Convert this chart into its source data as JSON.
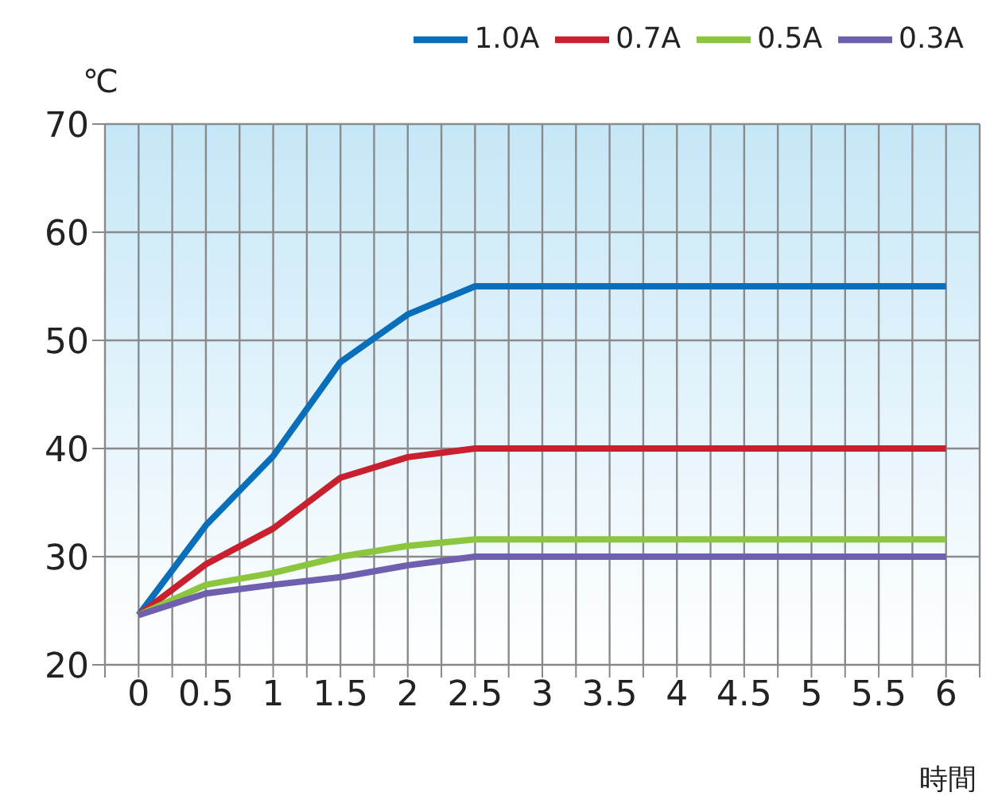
{
  "chart_data": {
    "type": "line",
    "ylabel": "℃",
    "xlabel": "時間",
    "x": [
      0,
      0.5,
      1,
      1.5,
      2,
      2.5,
      3,
      3.5,
      4,
      4.5,
      5,
      5.5,
      6
    ],
    "series": [
      {
        "name": "1.0A",
        "color": "#0a6fba",
        "values": [
          24.6,
          32.9,
          39.3,
          48.0,
          52.4,
          55.0,
          55.0,
          55.0,
          55.0,
          55.0,
          55.0,
          55.0,
          55.0
        ]
      },
      {
        "name": "0.7A",
        "color": "#c8202e",
        "values": [
          24.6,
          29.3,
          32.6,
          37.3,
          39.2,
          40.0,
          40.0,
          40.0,
          40.0,
          40.0,
          40.0,
          40.0,
          40.0
        ]
      },
      {
        "name": "0.5A",
        "color": "#8cc63f",
        "values": [
          24.6,
          27.4,
          28.5,
          30.0,
          31.0,
          31.6,
          31.6,
          31.6,
          31.6,
          31.6,
          31.6,
          31.6,
          31.6
        ]
      },
      {
        "name": "0.3A",
        "color": "#6f5fae",
        "values": [
          24.6,
          26.6,
          27.4,
          28.1,
          29.2,
          30.0,
          30.0,
          30.0,
          30.0,
          30.0,
          30.0,
          30.0,
          30.0
        ]
      }
    ],
    "xlim": [
      -0.25,
      6.25
    ],
    "xticks": [
      {
        "value": -0.25,
        "label": null
      },
      0,
      {
        "value": 0.25,
        "label": null
      },
      0.5,
      {
        "value": 0.75,
        "label": null
      },
      1,
      {
        "value": 1.25,
        "label": null
      },
      1.5,
      {
        "value": 1.75,
        "label": null
      },
      2,
      {
        "value": 2.25,
        "label": null
      },
      2.5,
      {
        "value": 2.75,
        "label": null
      },
      3,
      {
        "value": 3.25,
        "label": null
      },
      3.5,
      {
        "value": 3.75,
        "label": null
      },
      4,
      {
        "value": 4.25,
        "label": null
      },
      4.5,
      {
        "value": 4.75,
        "label": null
      },
      5,
      {
        "value": 5.25,
        "label": null
      },
      5.5,
      {
        "value": 5.75,
        "label": null
      },
      6,
      {
        "value": 6.25,
        "label": null
      }
    ],
    "ylim": [
      20,
      70
    ],
    "yticks": [
      20,
      30,
      40,
      50,
      60,
      70
    ],
    "grid": true,
    "legend": "top right",
    "marker": "none",
    "line_style": "solid"
  }
}
